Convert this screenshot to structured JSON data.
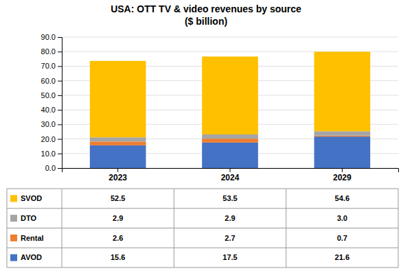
{
  "chart_data": {
    "type": "bar",
    "stacked": true,
    "title": "USA: OTT TV & video revenues by source\n($ billion)",
    "categories": [
      "2023",
      "2024",
      "2029"
    ],
    "series": [
      {
        "name": "AVOD",
        "color": "#4472c4",
        "values": [
          15.6,
          17.5,
          21.6
        ],
        "value_labels": [
          "15.6",
          "17.5",
          "21.6"
        ]
      },
      {
        "name": "Rental",
        "color": "#ed7d31",
        "values": [
          2.6,
          2.7,
          0.7
        ],
        "value_labels": [
          "2.6",
          "2.7",
          "0.7"
        ]
      },
      {
        "name": "DTO",
        "color": "#a5a5a5",
        "values": [
          2.9,
          2.9,
          3.0
        ],
        "value_labels": [
          "2.9",
          "2.9",
          "3.0"
        ]
      },
      {
        "name": "SVOD",
        "color": "#ffc000",
        "values": [
          52.5,
          53.5,
          54.6
        ],
        "value_labels": [
          "52.5",
          "53.5",
          "54.6"
        ]
      }
    ],
    "ylim": [
      0,
      90
    ],
    "yticks": [
      {
        "value": 0,
        "label": "0.0"
      },
      {
        "value": 10,
        "label": "10.0"
      },
      {
        "value": 20,
        "label": "20.0"
      },
      {
        "value": 30,
        "label": "30.0"
      },
      {
        "value": 40,
        "label": "40.0"
      },
      {
        "value": 50,
        "label": "50.0"
      },
      {
        "value": 60,
        "label": "60.0"
      },
      {
        "value": 70,
        "label": "70.0"
      },
      {
        "value": 80,
        "label": "80.0"
      },
      {
        "value": 90,
        "label": "90.0"
      }
    ],
    "grid": true
  }
}
